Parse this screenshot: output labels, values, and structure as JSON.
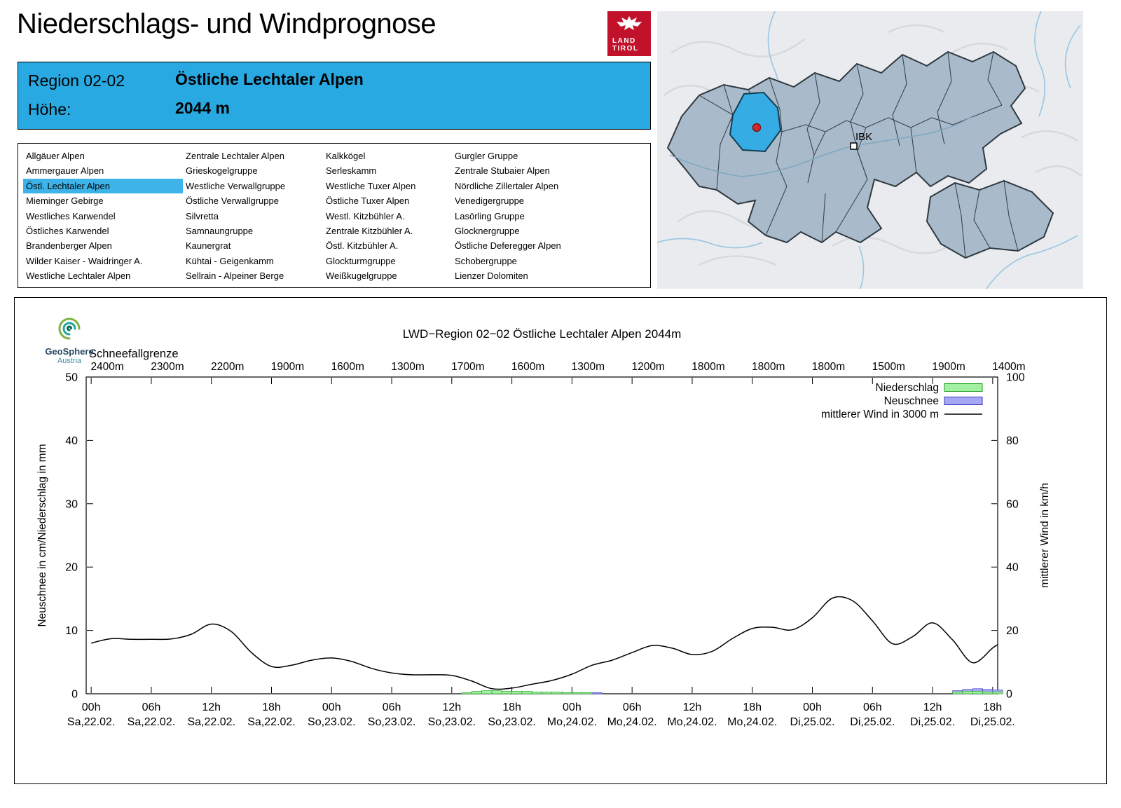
{
  "page": {
    "title": "Niederschlags- und Windprognose"
  },
  "logo_tirol": {
    "line1": "LAND",
    "line2": "TIROL",
    "color": "#C2122B"
  },
  "map": {
    "ibk_label": "IBK",
    "region_fill": "#A9BBCA",
    "highlight_color": "#35ACE4",
    "marker_dot_color": "#D22B2B"
  },
  "region_header": {
    "bg": "#29A9E1",
    "region_label": "Region 02-02",
    "region_name": "Östliche Lechtaler Alpen",
    "hoehe_label": "Höhe:",
    "hoehe_value": "2044 m"
  },
  "region_list": {
    "selected": "Östl. Lechtaler Alpen",
    "selected_bg": "#3DB3E9",
    "columns": [
      [
        "Allgäuer Alpen",
        "Ammergauer Alpen",
        "Östl. Lechtaler Alpen",
        "Mieminger Gebirge",
        "Westliches Karwendel",
        "Östliches Karwendel",
        "Brandenberger Alpen",
        "Wilder Kaiser - Waidringer A.",
        "Westliche Lechtaler Alpen"
      ],
      [
        "Zentrale Lechtaler Alpen",
        "Grieskogelgruppe",
        "Westliche Verwallgruppe",
        "Östliche Verwallgruppe",
        "Silvretta",
        "Samnaungruppe",
        "Kaunergrat",
        "Kühtai - Geigenkamm",
        "Sellrain - Alpeiner Berge"
      ],
      [
        "Kalkkögel",
        "Serleskamm",
        "Westliche Tuxer Alpen",
        "Östliche Tuxer Alpen",
        "Westl. Kitzbühler A.",
        "Zentrale Kitzbühler A.",
        "Östl. Kitzbühler A.",
        "Glockturmgruppe",
        "Weißkugelgruppe"
      ],
      [
        "Gurgler Gruppe",
        "Zentrale Stubaier Alpen",
        "Nördliche Zillertaler Alpen",
        "Venedigergruppe",
        "Lasörling Gruppe",
        "Glocknergruppe",
        "Östliche Deferegger Alpen",
        "Schobergruppe",
        "Lienzer Dolomiten"
      ]
    ]
  },
  "geosphere": {
    "name": "GeoSphere",
    "country": "Austria"
  },
  "chart_data": {
    "type": "line",
    "title": "LWD−Region 02−02 Östliche Lechtaler Alpen 2044m",
    "snowline": {
      "label": "Schneefallgrenze",
      "values": [
        "2400m",
        "2300m",
        "2200m",
        "1900m",
        "1600m",
        "1300m",
        "1700m",
        "1600m",
        "1300m",
        "1200m",
        "1800m",
        "1800m",
        "1800m",
        "1500m",
        "1900m",
        "1400m"
      ]
    },
    "x_ticks": [
      {
        "h": "00h",
        "d": "Sa,22.02."
      },
      {
        "h": "06h",
        "d": "Sa,22.02."
      },
      {
        "h": "12h",
        "d": "Sa,22.02."
      },
      {
        "h": "18h",
        "d": "Sa,22.02."
      },
      {
        "h": "00h",
        "d": "So,23.02."
      },
      {
        "h": "06h",
        "d": "So,23.02."
      },
      {
        "h": "12h",
        "d": "So,23.02."
      },
      {
        "h": "18h",
        "d": "So,23.02."
      },
      {
        "h": "00h",
        "d": "Mo,24.02."
      },
      {
        "h": "06h",
        "d": "Mo,24.02."
      },
      {
        "h": "12h",
        "d": "Mo,24.02."
      },
      {
        "h": "18h",
        "d": "Mo,24.02."
      },
      {
        "h": "00h",
        "d": "Di,25.02."
      },
      {
        "h": "06h",
        "d": "Di,25.02."
      },
      {
        "h": "12h",
        "d": "Di,25.02."
      },
      {
        "h": "18h",
        "d": "Di,25.02."
      }
    ],
    "axes": {
      "left_label": "Neuschnee in cm/Niederschlag in mm",
      "right_label": "mittlerer Wind in km/h",
      "left_range": [
        0,
        50
      ],
      "right_range": [
        0,
        100
      ],
      "left_ticks": [
        0,
        10,
        20,
        30,
        40,
        50
      ],
      "right_ticks": [
        0,
        20,
        40,
        60,
        80,
        100
      ],
      "x_range_hours": [
        -0.5,
        90.5
      ],
      "x_tick_interval_hours": 6,
      "grid": false
    },
    "legend": [
      {
        "label": "Niederschlag",
        "swatch": "box",
        "fill": "#A2F0A2",
        "stroke": "#18A018"
      },
      {
        "label": "Neuschnee",
        "swatch": "box",
        "fill": "#A6A6F2",
        "stroke": "#3A3AC8"
      },
      {
        "label": "mittlerer Wind in 3000 m",
        "swatch": "line",
        "stroke": "#000000"
      }
    ],
    "series": [
      {
        "name": "mittlerer Wind in 3000 m",
        "type": "line",
        "axis": "right",
        "unit": "km/h",
        "stroke": "#000000",
        "x_hours": [
          0,
          2,
          4,
          6,
          8,
          10,
          12,
          14,
          16,
          18,
          20,
          22,
          24,
          26,
          28,
          30,
          32,
          34,
          36,
          38,
          40,
          42,
          44,
          46,
          48,
          50,
          52,
          54,
          56,
          58,
          60,
          62,
          64,
          66,
          68,
          70,
          72,
          74,
          76,
          78,
          80,
          82,
          84,
          86,
          88,
          90,
          90.5
        ],
        "values": [
          16.0,
          17.4,
          17.2,
          17.2,
          17.3,
          18.8,
          22.0,
          19.6,
          13.0,
          8.6,
          9.0,
          10.6,
          11.3,
          10.2,
          8.0,
          6.6,
          6.0,
          6.0,
          5.8,
          4.0,
          1.6,
          1.8,
          3.0,
          4.2,
          6.2,
          9.0,
          10.6,
          13.0,
          15.2,
          14.4,
          12.4,
          13.4,
          17.4,
          20.6,
          21.0,
          20.2,
          24.0,
          30.2,
          29.4,
          23.0,
          15.8,
          18.0,
          22.4,
          17.0,
          9.8,
          14.5,
          15.5
        ]
      },
      {
        "name": "Neuschnee",
        "type": "bar",
        "axis": "left",
        "unit": "cm",
        "fill": "#A6A6F2",
        "stroke": "#3A3AC8",
        "x_hours": [
          43,
          44,
          45,
          46,
          47,
          48,
          49,
          50,
          86,
          87,
          88,
          89,
          90
        ],
        "values": [
          0.2,
          0.2,
          0.2,
          0.2,
          0.2,
          0.2,
          0.2,
          0.2,
          0.5,
          0.7,
          0.8,
          0.7,
          0.6
        ]
      },
      {
        "name": "Niederschlag",
        "type": "bar",
        "axis": "left",
        "unit": "mm",
        "fill": "#A2F0A2",
        "stroke": "#18A018",
        "x_hours": [
          37,
          38,
          39,
          40,
          41,
          42,
          43,
          44,
          45,
          46,
          47,
          48,
          49,
          86,
          87,
          88,
          89,
          90
        ],
        "values": [
          0.2,
          0.4,
          0.5,
          0.5,
          0.4,
          0.4,
          0.4,
          0.3,
          0.3,
          0.3,
          0.2,
          0.2,
          0.2,
          0.3,
          0.4,
          0.4,
          0.3,
          0.3
        ]
      }
    ]
  }
}
